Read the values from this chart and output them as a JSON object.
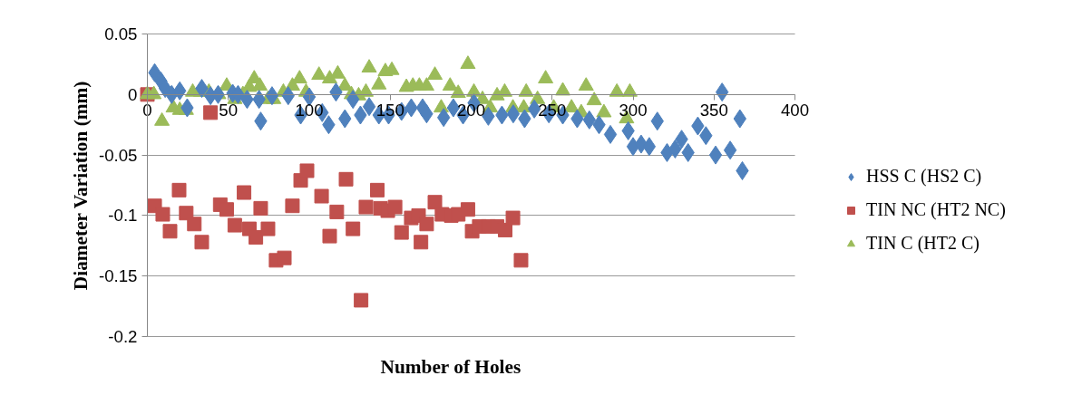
{
  "chart_data": {
    "type": "scatter",
    "xlabel": "Number of Holes",
    "ylabel": "Diameter Variation (mm)",
    "xlim": [
      0,
      400
    ],
    "xticks": [
      0,
      50,
      100,
      150,
      200,
      250,
      300,
      350,
      400
    ],
    "ylim": [
      -0.2,
      0.05
    ],
    "yticks": [
      -0.2,
      -0.15,
      -0.1,
      -0.05,
      0,
      0.05
    ],
    "grid": "y",
    "legend": "right",
    "series": [
      {
        "name": "HSS C (HS2 C)",
        "color": "#4f81bd",
        "marker": "diamond",
        "x": [
          4.5,
          8.4,
          11,
          15,
          20,
          24.6,
          33.6,
          39,
          43.7,
          52.7,
          56,
          61.6,
          69,
          70,
          77,
          87,
          94.7,
          100,
          108,
          112,
          116.5,
          122,
          127,
          131.6,
          137,
          143,
          149,
          157,
          163,
          170,
          172.5,
          183,
          189,
          195,
          201.7,
          210.6,
          219,
          226,
          233,
          239,
          248,
          256.6,
          265.5,
          273,
          279,
          286,
          297,
          300,
          305,
          310,
          315,
          321,
          326,
          330,
          334,
          340,
          345,
          351,
          355,
          360,
          366,
          367.5
        ],
        "values": [
          0.018,
          0.011,
          0.005,
          0,
          0.003,
          -0.011,
          0.005,
          -0.001,
          0,
          0.001,
          0,
          -0.004,
          -0.004,
          -0.022,
          -0.001,
          -0.001,
          -0.017,
          -0.002,
          -0.015,
          -0.025,
          0.002,
          -0.02,
          -0.004,
          -0.017,
          -0.01,
          -0.017,
          -0.017,
          -0.014,
          -0.011,
          -0.011,
          -0.016,
          -0.019,
          -0.011,
          -0.017,
          -0.007,
          -0.018,
          -0.017,
          -0.016,
          -0.02,
          -0.012,
          -0.016,
          -0.017,
          -0.02,
          -0.021,
          -0.025,
          -0.033,
          -0.03,
          -0.043,
          -0.041,
          -0.043,
          -0.022,
          -0.048,
          -0.045,
          -0.037,
          -0.048,
          -0.026,
          -0.034,
          -0.05,
          0.002,
          -0.046,
          -0.02,
          -0.063
        ]
      },
      {
        "name": "TIN NC (HT2 NC)",
        "color": "#c0504d",
        "marker": "square",
        "x": [
          0,
          4.5,
          9.5,
          14,
          19.6,
          24,
          29,
          33.6,
          39,
          45,
          49,
          54,
          59.7,
          63,
          67,
          70,
          74.5,
          79.5,
          84.6,
          89.6,
          94.7,
          98.6,
          107.6,
          112.6,
          117,
          122.7,
          127,
          132,
          135,
          142,
          144,
          148.5,
          153,
          157,
          163,
          167.5,
          169,
          172.5,
          177.6,
          182,
          187.7,
          192,
          198,
          200.6,
          205,
          210.6,
          216,
          221,
          225.8,
          230.8
        ],
        "values": [
          0,
          -0.092,
          -0.099,
          -0.113,
          -0.079,
          -0.098,
          -0.107,
          -0.122,
          -0.015,
          -0.091,
          -0.095,
          -0.108,
          -0.081,
          -0.111,
          -0.118,
          -0.094,
          -0.111,
          -0.137,
          -0.135,
          -0.092,
          -0.071,
          -0.063,
          -0.084,
          -0.117,
          -0.097,
          -0.07,
          -0.111,
          -0.17,
          -0.093,
          -0.079,
          -0.094,
          -0.096,
          -0.093,
          -0.114,
          -0.102,
          -0.1,
          -0.122,
          -0.107,
          -0.089,
          -0.099,
          -0.1,
          -0.099,
          -0.095,
          -0.113,
          -0.109,
          -0.109,
          -0.109,
          -0.112,
          -0.102,
          -0.137
        ]
      },
      {
        "name": "TIN C (HT2 C)",
        "color": "#9bbb59",
        "marker": "triangle",
        "x": [
          0,
          4,
          9,
          16,
          20,
          24,
          28,
          33,
          38,
          44,
          49,
          54,
          59,
          63,
          66,
          69.5,
          74.5,
          78,
          84,
          89.6,
          94,
          98,
          106,
          112.6,
          117.6,
          122,
          126,
          130.5,
          135,
          137,
          143,
          147,
          151,
          160,
          164,
          168,
          172.5,
          177.6,
          181.5,
          187,
          192,
          198,
          201.7,
          207,
          211.8,
          216,
          220.7,
          225.8,
          232.5,
          234,
          241,
          246,
          251,
          256.6,
          262,
          268,
          271,
          276,
          282,
          290,
          296,
          298
        ],
        "values": [
          0,
          0,
          -0.022,
          -0.011,
          -0.013,
          -0.013,
          0.002,
          0.002,
          0.002,
          0,
          0.007,
          -0.004,
          0,
          0.006,
          0.013,
          0.007,
          -0.004,
          -0.004,
          0.002,
          0.007,
          0.013,
          0.002,
          0.016,
          0.013,
          0.017,
          0.007,
          0,
          -0.001,
          0.002,
          0.022,
          0.008,
          0.019,
          0.02,
          0.006,
          0.007,
          0.007,
          0.007,
          0.016,
          -0.011,
          0.007,
          0.001,
          0.025,
          0.002,
          -0.004,
          -0.011,
          -0.001,
          0.002,
          -0.011,
          -0.011,
          0.002,
          -0.004,
          0.013,
          -0.011,
          0.003,
          -0.011,
          -0.015,
          0.007,
          -0.005,
          -0.015,
          0.002,
          -0.02,
          0.002
        ]
      }
    ]
  }
}
